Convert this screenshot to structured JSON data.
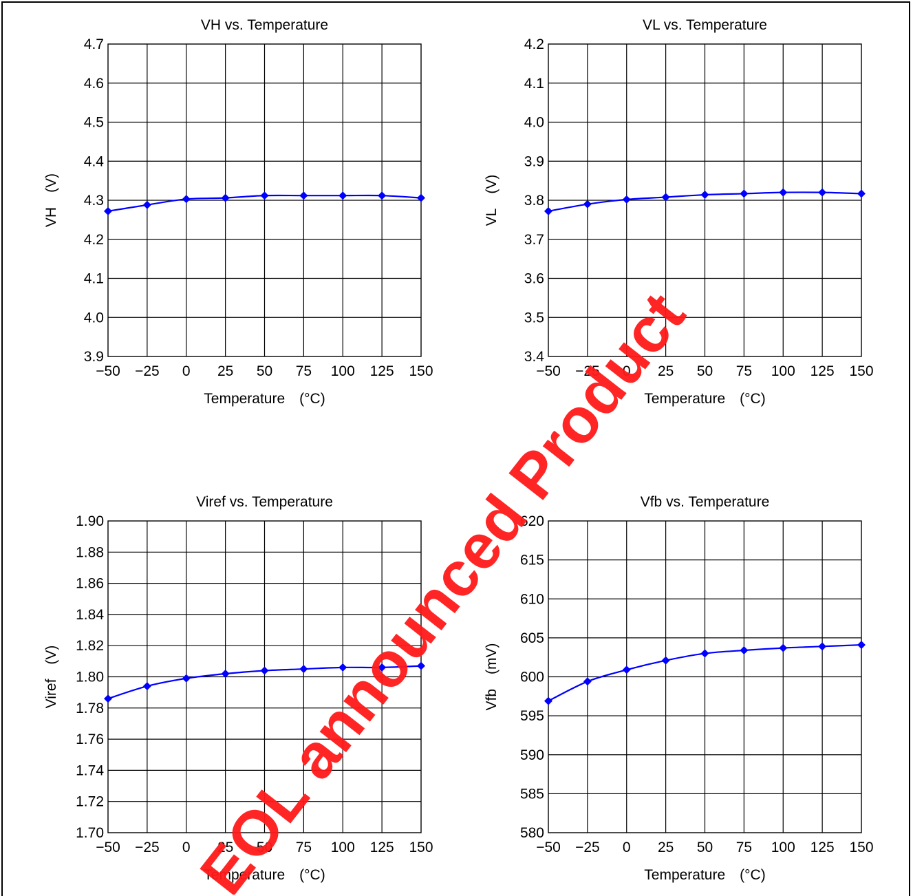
{
  "chart_data": [
    {
      "type": "line",
      "title": "VH vs. Temperature",
      "xlabel": "Temperature (°C)",
      "ylabel": "VH (V)",
      "x": [
        -50,
        -25,
        0,
        25,
        50,
        75,
        100,
        125,
        150
      ],
      "x_ticks": [
        "−50",
        "−25",
        "0",
        "25",
        "50",
        "75",
        "100",
        "125",
        "150"
      ],
      "xlim": [
        -50,
        150
      ],
      "ylim": [
        3.9,
        4.7
      ],
      "y_ticks": [
        "3.9",
        "4.0",
        "4.1",
        "4.2",
        "4.3",
        "4.4",
        "4.5",
        "4.6",
        "4.7"
      ],
      "series": [
        {
          "values": [
            4.272,
            4.288,
            4.303,
            4.306,
            4.312,
            4.312,
            4.312,
            4.312,
            4.306
          ],
          "color": "#0000ff"
        }
      ],
      "grid": true
    },
    {
      "type": "line",
      "title": "VL vs. Temperature",
      "xlabel": "Temperature (°C)",
      "ylabel": "VL (V)",
      "x": [
        -50,
        -25,
        0,
        25,
        50,
        75,
        100,
        125,
        150
      ],
      "x_ticks": [
        "−50",
        "−25",
        "0",
        "25",
        "50",
        "75",
        "100",
        "125",
        "150"
      ],
      "xlim": [
        -50,
        150
      ],
      "ylim": [
        3.4,
        4.2
      ],
      "y_ticks": [
        "3.4",
        "3.5",
        "3.6",
        "3.7",
        "3.8",
        "3.9",
        "4.0",
        "4.1",
        "4.2"
      ],
      "series": [
        {
          "values": [
            3.772,
            3.79,
            3.802,
            3.808,
            3.814,
            3.817,
            3.82,
            3.82,
            3.817
          ],
          "color": "#0000ff"
        }
      ],
      "grid": true
    },
    {
      "type": "line",
      "title": "Viref vs. Temperature",
      "xlabel": "Temperature (°C)",
      "ylabel": "Viref (V)",
      "x": [
        -50,
        -25,
        0,
        25,
        50,
        75,
        100,
        125,
        150
      ],
      "x_ticks": [
        "−50",
        "−25",
        "0",
        "25",
        "50",
        "75",
        "100",
        "125",
        "150"
      ],
      "xlim": [
        -50,
        150
      ],
      "ylim": [
        1.7,
        1.9
      ],
      "y_ticks": [
        "1.70",
        "1.72",
        "1.74",
        "1.76",
        "1.78",
        "1.80",
        "1.82",
        "1.84",
        "1.86",
        "1.88",
        "1.90"
      ],
      "series": [
        {
          "values": [
            1.786,
            1.794,
            1.799,
            1.802,
            1.804,
            1.805,
            1.806,
            1.806,
            1.807
          ],
          "color": "#0000ff"
        }
      ],
      "grid": true
    },
    {
      "type": "line",
      "title": "Vfb vs. Temperature",
      "xlabel": "Temperature (°C)",
      "ylabel": "Vfb (mV)",
      "x": [
        -50,
        -25,
        0,
        25,
        50,
        75,
        100,
        125,
        150
      ],
      "x_ticks": [
        "−50",
        "−25",
        "0",
        "25",
        "50",
        "75",
        "100",
        "125",
        "150"
      ],
      "xlim": [
        -50,
        150
      ],
      "ylim": [
        580,
        620
      ],
      "y_ticks": [
        "580",
        "585",
        "590",
        "595",
        "600",
        "605",
        "610",
        "615",
        "620"
      ],
      "series": [
        {
          "values": [
            596.9,
            599.4,
            600.9,
            602.1,
            603.0,
            603.4,
            603.7,
            603.9,
            604.1
          ],
          "color": "#0000ff"
        }
      ],
      "grid": true
    }
  ],
  "watermark": {
    "text": "EOL announced Product",
    "color": "#ff1a1a"
  }
}
